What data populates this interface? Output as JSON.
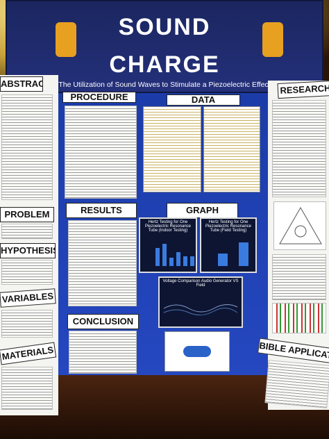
{
  "banner": {
    "title_line1": "SOUND",
    "title_line2": "CHARGE",
    "subtitle": "The Utilization of Sound Waves to Stimulate a Piezoelectric Effect"
  },
  "left_panel": [
    {
      "heading": "ABSTRACT"
    },
    {
      "heading": "PROBLEM"
    },
    {
      "heading": "HYPOTHESIS"
    },
    {
      "heading": "VARIABLES"
    },
    {
      "heading": "MATERIALS"
    }
  ],
  "center_panel": {
    "procedure": "PROCEDURE",
    "data": "DATA",
    "results": "RESULTS",
    "graph": "GRAPH",
    "conclusion": "CONCLUSION",
    "graphs": [
      "Hertz Testing for One Piezoelectric Resonance Tube (Indoor Testing)",
      "Hertz Testing for One Piezoelectric Resonance Tube (Field Testing)",
      "Voltage Comparison Audio Generator VS Field"
    ]
  },
  "right_panel": [
    {
      "heading": "RESEARCH"
    },
    {
      "heading": "BIBLE APPLICATION"
    }
  ]
}
